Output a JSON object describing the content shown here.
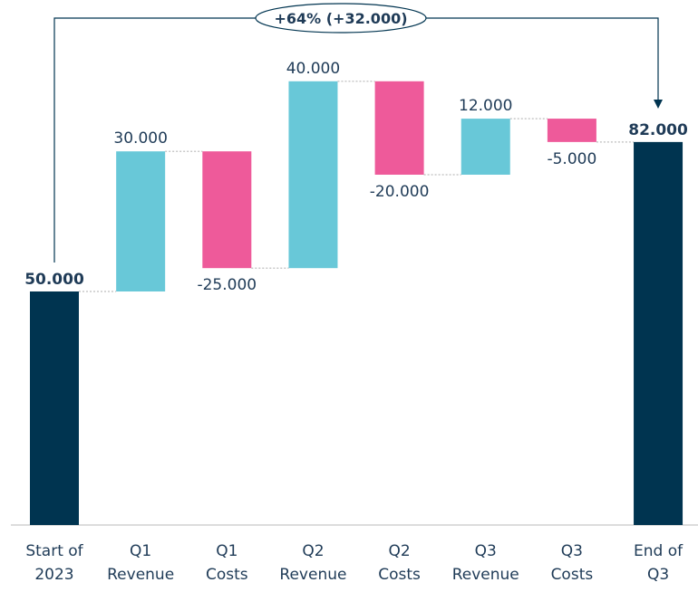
{
  "chart_data": {
    "type": "waterfall",
    "categories": [
      [
        "Start of",
        "2023"
      ],
      [
        "Q1",
        "Revenue"
      ],
      [
        "Q1",
        "Costs"
      ],
      [
        "Q2",
        "Revenue"
      ],
      [
        "Q2",
        "Costs"
      ],
      [
        "Q3",
        "Revenue"
      ],
      [
        "Q3",
        "Costs"
      ],
      [
        "End of",
        "Q3"
      ]
    ],
    "values": [
      50000,
      30000,
      -25000,
      40000,
      -20000,
      12000,
      -5000,
      82000
    ],
    "kinds": [
      "total",
      "delta",
      "delta",
      "delta",
      "delta",
      "delta",
      "delta",
      "total"
    ],
    "labels": [
      "50.000",
      "30.000",
      "-25.000",
      "40.000",
      "-20.000",
      "12.000",
      "-5.000",
      "82.000"
    ],
    "annotation": "+64% (+32.000)",
    "ylim": [
      0,
      100000
    ],
    "grid": false,
    "colors": {
      "total": "#003450",
      "increase": "#68C8D8",
      "decrease": "#EE5A9A",
      "connector": "#C8C8C8",
      "axis": "#D0D0D0",
      "text": "#1F3B57"
    }
  }
}
